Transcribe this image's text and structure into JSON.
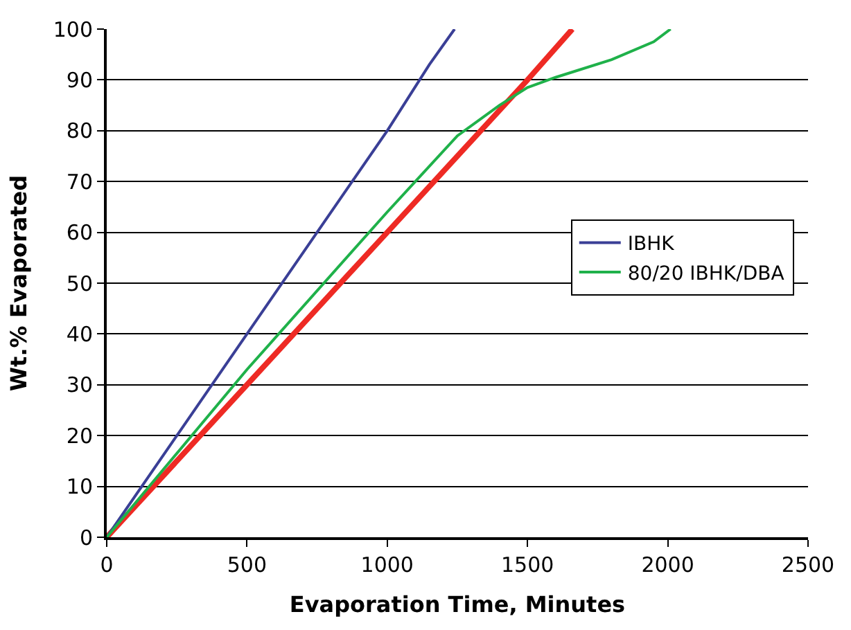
{
  "chart_data": {
    "type": "line",
    "xlabel": "Evaporation Time, Minutes",
    "ylabel": "Wt.% Evaporated",
    "xlim": [
      0,
      2500
    ],
    "xticks": [
      0,
      500,
      1000,
      1500,
      2000,
      2500
    ],
    "ylim": [
      0,
      100
    ],
    "yticks": [
      0,
      10,
      20,
      30,
      40,
      50,
      60,
      70,
      80,
      90,
      100
    ],
    "grid": "y",
    "legend": "right",
    "marker": "none",
    "line_style": "solid",
    "series": [
      {
        "color": "#ee2a24",
        "x": [
          0,
          500,
          1000,
          1500,
          1660
        ],
        "values": [
          0,
          30,
          60,
          90,
          100
        ]
      },
      {
        "name": "IBHK",
        "color": "#3a3f96",
        "x": [
          0,
          500,
          1000,
          1150,
          1240
        ],
        "values": [
          0,
          40,
          80,
          93,
          100
        ]
      },
      {
        "name": "80/20 IBHK/DBA",
        "color": "#1fb14a",
        "x": [
          0,
          500,
          1000,
          1250,
          1400,
          1500,
          1600,
          1800,
          1950,
          2010
        ],
        "values": [
          0,
          33,
          64,
          79,
          85,
          88.5,
          90.5,
          94,
          97.5,
          100
        ]
      }
    ]
  }
}
